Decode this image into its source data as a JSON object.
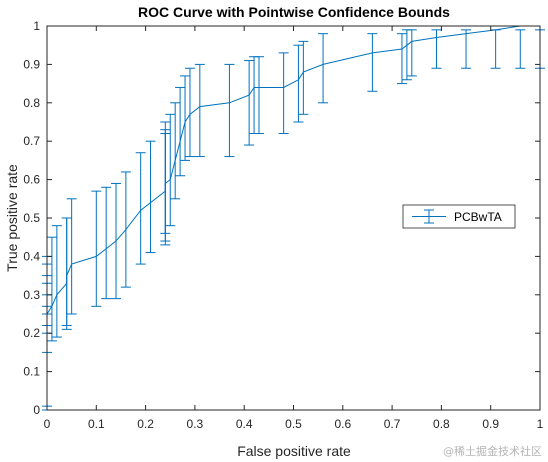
{
  "watermark": "@稀土掘金技术社区",
  "chart_data": {
    "type": "line",
    "title": "ROC Curve with Pointwise Confidence Bounds",
    "xlabel": "False positive rate",
    "ylabel": "True positive rate",
    "xlim": [
      0,
      1
    ],
    "ylim": [
      0,
      1
    ],
    "xticks": [
      "0",
      "0.1",
      "0.2",
      "0.3",
      "0.4",
      "0.5",
      "0.6",
      "0.7",
      "0.8",
      "0.9",
      "1"
    ],
    "yticks": [
      "0",
      "0.1",
      "0.2",
      "0.3",
      "0.4",
      "0.5",
      "0.6",
      "0.7",
      "0.8",
      "0.9",
      "1"
    ],
    "grid": false,
    "legend_position": "right",
    "series": [
      {
        "name": "PCBwTA",
        "color": "#0072BD",
        "x": [
          0.0,
          0.0,
          0.0,
          0.0,
          0.0,
          0.0,
          0.0,
          0.0,
          0.0,
          0.0,
          0.01,
          0.02,
          0.04,
          0.04,
          0.05,
          0.1,
          0.12,
          0.14,
          0.16,
          0.19,
          0.21,
          0.24,
          0.24,
          0.24,
          0.25,
          0.26,
          0.27,
          0.28,
          0.29,
          0.31,
          0.37,
          0.41,
          0.42,
          0.43,
          0.48,
          0.51,
          0.52,
          0.56,
          0.66,
          0.72,
          0.73,
          0.74,
          0.79,
          0.85,
          0.91,
          0.96,
          1.0
        ],
        "y": [
          0.02,
          0.05,
          0.07,
          0.1,
          0.12,
          0.15,
          0.17,
          0.2,
          0.22,
          0.25,
          0.27,
          0.3,
          0.33,
          0.35,
          0.38,
          0.4,
          0.42,
          0.44,
          0.47,
          0.52,
          0.54,
          0.57,
          0.58,
          0.59,
          0.6,
          0.65,
          0.7,
          0.75,
          0.77,
          0.79,
          0.8,
          0.82,
          0.84,
          0.84,
          0.84,
          0.86,
          0.88,
          0.9,
          0.93,
          0.94,
          0.95,
          0.96,
          0.97,
          0.98,
          0.99,
          1.0,
          1.0
        ],
        "lower": [
          0.0,
          0.0,
          0.0,
          0.0,
          0.0,
          0.0,
          0.0,
          0.0,
          0.0,
          0.01,
          0.18,
          0.19,
          0.21,
          0.22,
          0.25,
          0.27,
          0.29,
          0.29,
          0.32,
          0.38,
          0.41,
          0.43,
          0.44,
          0.46,
          0.48,
          0.55,
          0.61,
          0.65,
          0.66,
          0.66,
          0.66,
          0.69,
          0.72,
          0.72,
          0.72,
          0.75,
          0.77,
          0.8,
          0.83,
          0.85,
          0.86,
          0.87,
          0.89,
          0.89,
          0.89,
          0.89,
          0.89
        ],
        "upper": [
          0.15,
          0.2,
          0.22,
          0.25,
          0.27,
          0.3,
          0.33,
          0.35,
          0.38,
          0.4,
          0.45,
          0.48,
          0.5,
          0.5,
          0.55,
          0.57,
          0.58,
          0.59,
          0.62,
          0.67,
          0.7,
          0.72,
          0.73,
          0.75,
          0.77,
          0.8,
          0.84,
          0.87,
          0.89,
          0.9,
          0.9,
          0.91,
          0.92,
          0.92,
          0.93,
          0.95,
          0.96,
          0.98,
          0.98,
          0.98,
          0.99,
          0.99,
          0.99,
          0.99,
          0.99,
          0.99,
          0.99
        ]
      }
    ]
  }
}
